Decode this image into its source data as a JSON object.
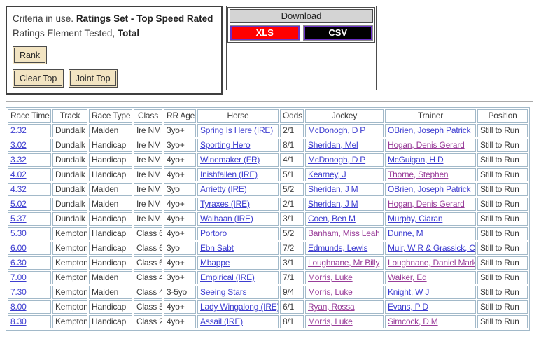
{
  "criteria": {
    "prefix": "Criteria in use.",
    "ratings_set": "Ratings Set - Top Speed Rated",
    "element_prefix": "Ratings Element Tested,",
    "element_value": "Total",
    "buttons": {
      "rank": "Rank",
      "clear_top": "Clear Top",
      "joint_top": "Joint Top"
    }
  },
  "download": {
    "title": "Download",
    "formats": [
      {
        "label": "XLS",
        "bg": "#ff0000"
      },
      {
        "label": "CSV",
        "bg": "#000000"
      }
    ]
  },
  "colors": {
    "link_blue": "#3d3dd0",
    "link_visited": "#993d99",
    "table_border": "#a2b9c9",
    "button_bg": "#f2e4c2",
    "download_header_bg": "#d4d4d4",
    "format_border_violet": "#6a30c8",
    "text": "#3c3c3c"
  },
  "table": {
    "headers": [
      "Race Time",
      "Track",
      "Race Type",
      "Class",
      "RR Age",
      "Horse",
      "Odds",
      "Jockey",
      "Trainer",
      "Position"
    ],
    "rows": [
      {
        "time": "2.32",
        "track": "Dundalk",
        "race_type": "Maiden",
        "class": "Ire NM",
        "rr_age": "3yo+",
        "horse": "Spring Is Here (IRE)",
        "odds": "2/1",
        "jockey": "McDonogh, D P",
        "jockey_visited": false,
        "trainer": "OBrien, Joseph Patrick",
        "trainer_visited": false,
        "position": "Still to Run"
      },
      {
        "time": "3.02",
        "track": "Dundalk",
        "race_type": "Handicap",
        "class": "Ire NM",
        "rr_age": "3yo+",
        "horse": "Sporting Hero",
        "odds": "8/1",
        "jockey": "Sheridan, Mel",
        "jockey_visited": false,
        "trainer": "Hogan, Denis Gerard",
        "trainer_visited": true,
        "position": "Still to Run"
      },
      {
        "time": "3.32",
        "track": "Dundalk",
        "race_type": "Handicap",
        "class": "Ire NM",
        "rr_age": "4yo+",
        "horse": "Winemaker (FR)",
        "odds": "4/1",
        "jockey": "McDonogh, D P",
        "jockey_visited": false,
        "trainer": "McGuigan, H D",
        "trainer_visited": false,
        "position": "Still to Run"
      },
      {
        "time": "4.02",
        "track": "Dundalk",
        "race_type": "Handicap",
        "class": "Ire NM",
        "rr_age": "4yo+",
        "horse": "Inishfallen (IRE)",
        "odds": "5/1",
        "jockey": "Kearney, J",
        "jockey_visited": false,
        "trainer": "Thorne, Stephen",
        "trainer_visited": true,
        "position": "Still to Run"
      },
      {
        "time": "4.32",
        "track": "Dundalk",
        "race_type": "Maiden",
        "class": "Ire NM",
        "rr_age": "3yo",
        "horse": "Arrietty (IRE)",
        "odds": "5/2",
        "jockey": "Sheridan, J M",
        "jockey_visited": false,
        "trainer": "OBrien, Joseph Patrick",
        "trainer_visited": false,
        "position": "Still to Run"
      },
      {
        "time": "5.02",
        "track": "Dundalk",
        "race_type": "Maiden",
        "class": "Ire NM",
        "rr_age": "4yo+",
        "horse": "Tyraxes (IRE)",
        "odds": "2/1",
        "jockey": "Sheridan, J M",
        "jockey_visited": false,
        "trainer": "Hogan, Denis Gerard",
        "trainer_visited": true,
        "position": "Still to Run"
      },
      {
        "time": "5.37",
        "track": "Dundalk",
        "race_type": "Handicap",
        "class": "Ire NM",
        "rr_age": "4yo+",
        "horse": "Walhaan (IRE)",
        "odds": "3/1",
        "jockey": "Coen, Ben M",
        "jockey_visited": false,
        "trainer": "Murphy, Ciaran",
        "trainer_visited": false,
        "position": "Still to Run"
      },
      {
        "time": "5.30",
        "track": "Kempton",
        "race_type": "Handicap",
        "class": "Class 6",
        "rr_age": "4yo+",
        "horse": "Portoro",
        "odds": "5/2",
        "jockey": "Banham, Miss Leah",
        "jockey_visited": true,
        "trainer": "Dunne, M",
        "trainer_visited": false,
        "position": "Still to Run"
      },
      {
        "time": "6.00",
        "track": "Kempton",
        "race_type": "Handicap",
        "class": "Class 6",
        "rr_age": "3yo",
        "horse": "Ebn Sabt",
        "odds": "7/2",
        "jockey": "Edmunds, Lewis",
        "jockey_visited": false,
        "trainer": "Muir, W R & Grassick, C",
        "trainer_visited": false,
        "position": "Still to Run"
      },
      {
        "time": "6.30",
        "track": "Kempton",
        "race_type": "Handicap",
        "class": "Class 6",
        "rr_age": "4yo+",
        "horse": "Mbappe",
        "odds": "3/1",
        "jockey": "Loughnane, Mr Billy",
        "jockey_visited": true,
        "trainer": "Loughnane, Daniel Mark",
        "trainer_visited": true,
        "position": "Still to Run"
      },
      {
        "time": "7.00",
        "track": "Kempton",
        "race_type": "Maiden",
        "class": "Class 4",
        "rr_age": "3yo+",
        "horse": "Empirical (IRE)",
        "odds": "7/1",
        "jockey": "Morris, Luke",
        "jockey_visited": true,
        "trainer": "Walker, Ed",
        "trainer_visited": true,
        "position": "Still to Run"
      },
      {
        "time": "7.30",
        "track": "Kempton",
        "race_type": "Maiden",
        "class": "Class 4",
        "rr_age": "3-5yo",
        "horse": "Seeing Stars",
        "odds": "9/4",
        "jockey": "Morris, Luke",
        "jockey_visited": true,
        "trainer": "Knight, W J",
        "trainer_visited": false,
        "position": "Still to Run"
      },
      {
        "time": "8.00",
        "track": "Kempton",
        "race_type": "Handicap",
        "class": "Class 5",
        "rr_age": "4yo+",
        "horse": "Lady Wingalong (IRE)",
        "odds": "6/1",
        "jockey": "Ryan, Rossa",
        "jockey_visited": true,
        "trainer": "Evans, P D",
        "trainer_visited": false,
        "position": "Still to Run"
      },
      {
        "time": "8.30",
        "track": "Kempton",
        "race_type": "Handicap",
        "class": "Class 2",
        "rr_age": "4yo+",
        "horse": "Assail (IRE)",
        "odds": "8/1",
        "jockey": "Morris, Luke",
        "jockey_visited": true,
        "trainer": "Simcock, D M",
        "trainer_visited": true,
        "position": "Still to Run"
      }
    ]
  }
}
